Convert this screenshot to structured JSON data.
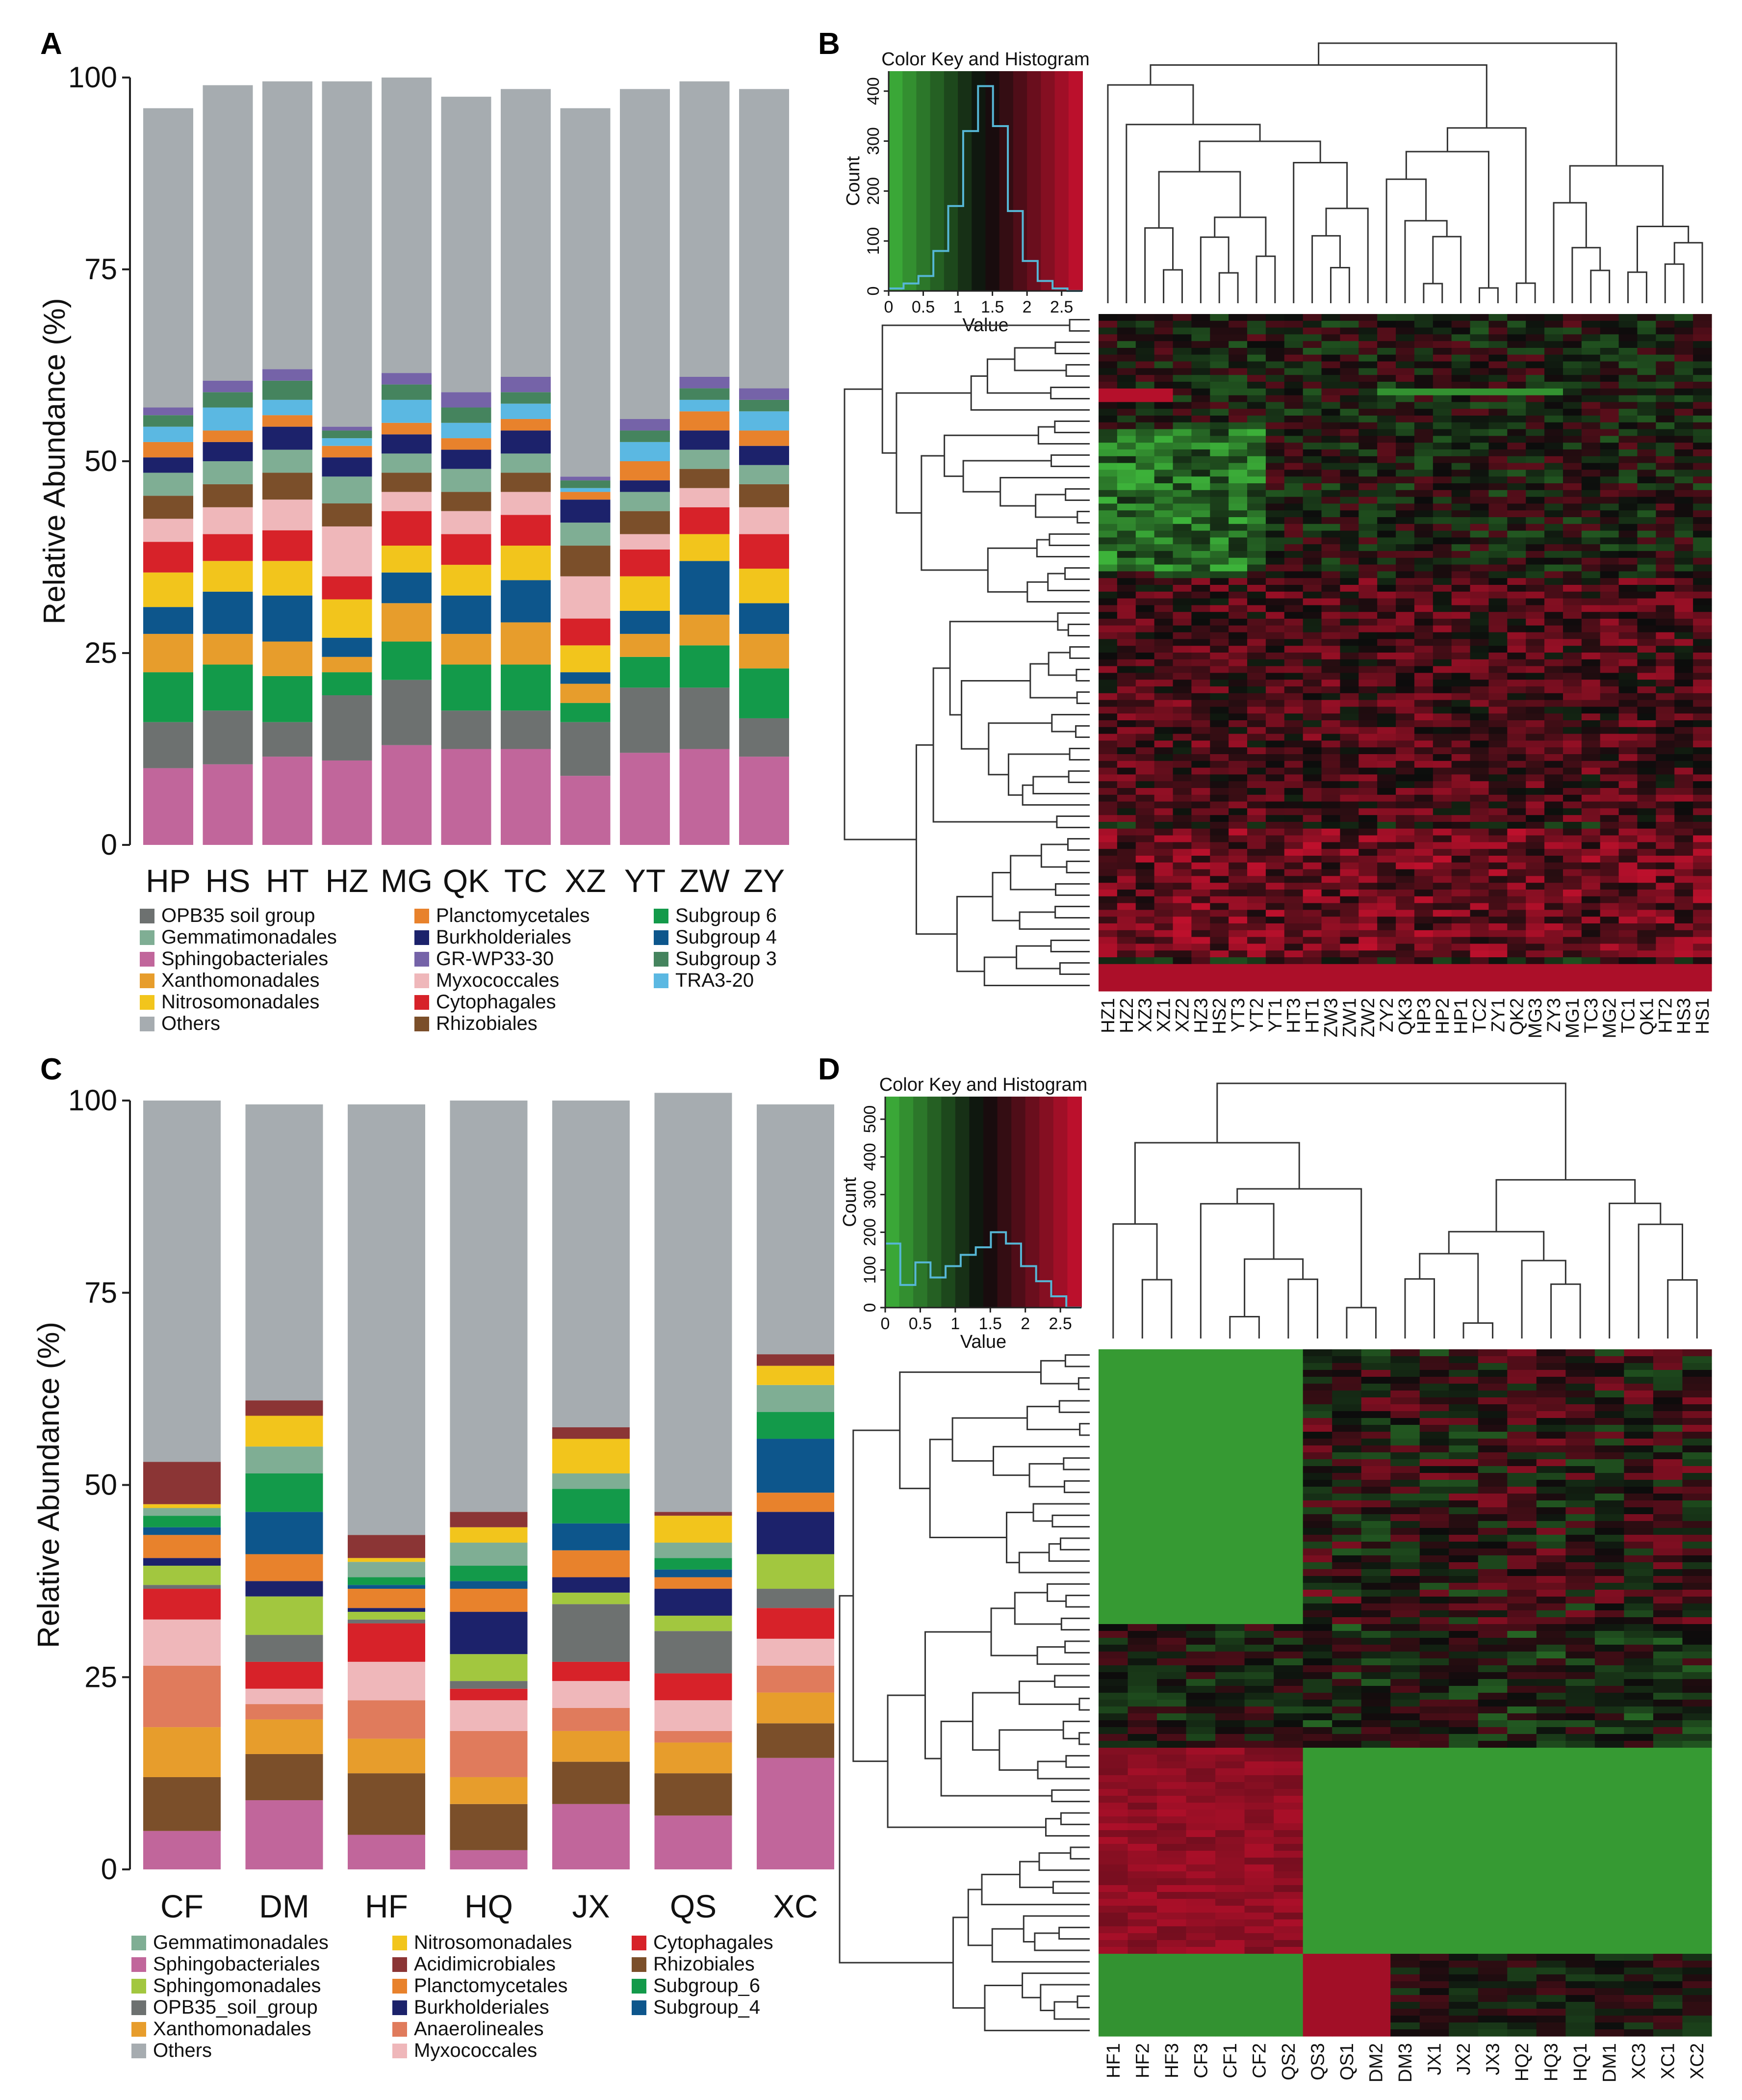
{
  "panels": {
    "A": "A",
    "B": "B",
    "C": "C",
    "D": "D"
  },
  "chart_data": [
    {
      "panel": "A",
      "type": "bar",
      "stacked": true,
      "title": "",
      "xlabel": "",
      "ylabel": "Relative Abundance (%)",
      "ylim": [
        0,
        100
      ],
      "yticks": [
        0,
        25,
        50,
        75,
        100
      ],
      "categories": [
        "HP",
        "HS",
        "HT",
        "HZ",
        "MG",
        "QK",
        "TC",
        "XZ",
        "YT",
        "ZW",
        "ZY"
      ],
      "series": [
        {
          "name": "Sphingobacteriales",
          "color": "#c1669b",
          "values": [
            10,
            10.5,
            11.5,
            11,
            13,
            12.5,
            12.5,
            9,
            12,
            12.5,
            11.5
          ]
        },
        {
          "name": "OPB35 soil group",
          "color": "#6d7170",
          "values": [
            6,
            7,
            4.5,
            8.5,
            8.5,
            5,
            5,
            7,
            8.5,
            8,
            5
          ]
        },
        {
          "name": "Subgroup 6",
          "color": "#139a4a",
          "values": [
            6.5,
            6,
            6,
            3,
            5,
            6,
            6,
            2.5,
            4,
            5.5,
            6.5
          ]
        },
        {
          "name": "Xanthomonadales",
          "color": "#e79d2c",
          "values": [
            5,
            4,
            4.5,
            2,
            5,
            4,
            5.5,
            2.5,
            3,
            4,
            4.5
          ]
        },
        {
          "name": "Subgroup 4",
          "color": "#0d568c",
          "values": [
            3.5,
            5.5,
            6,
            2.5,
            4,
            5,
            5.5,
            1.5,
            3,
            7,
            4
          ]
        },
        {
          "name": "Nitrosomonadales",
          "color": "#f2c51c",
          "values": [
            4.5,
            4,
            4.5,
            5,
            3.5,
            4,
            4.5,
            3.5,
            4.5,
            3.5,
            4.5
          ]
        },
        {
          "name": "Cytophagales",
          "color": "#d72229",
          "values": [
            4,
            3.5,
            4,
            3,
            4.5,
            4,
            4,
            3.5,
            3.5,
            3.5,
            4.5
          ]
        },
        {
          "name": "Myxococcales",
          "color": "#efb7ba",
          "values": [
            3,
            3.5,
            4,
            6.5,
            2.5,
            3,
            3,
            5.5,
            2,
            2.5,
            3.5
          ]
        },
        {
          "name": "Rhizobiales",
          "color": "#7b4f2a",
          "values": [
            3,
            3,
            3.5,
            3,
            2.5,
            2.5,
            2.5,
            4,
            3,
            2.5,
            3
          ]
        },
        {
          "name": "Gemmatimonadales",
          "color": "#7fae94",
          "values": [
            3,
            3,
            3,
            3.5,
            2.5,
            3,
            2.5,
            3,
            2.5,
            2.5,
            2.5
          ]
        },
        {
          "name": "Burkholderiales",
          "color": "#1c226b",
          "values": [
            2,
            2.5,
            3,
            2.5,
            2.5,
            2.5,
            3,
            3,
            1.5,
            2.5,
            2.5
          ]
        },
        {
          "name": "Planctomycetales",
          "color": "#e8822c",
          "values": [
            2,
            1.5,
            1.5,
            1.5,
            1.5,
            1.5,
            1.5,
            1,
            2.5,
            2.5,
            2
          ]
        },
        {
          "name": "TRA3-20",
          "color": "#5bb8e2",
          "values": [
            2,
            3,
            2,
            1,
            3,
            2,
            2,
            0.5,
            2.5,
            1.5,
            2.5
          ]
        },
        {
          "name": "Subgroup 3",
          "color": "#45845e",
          "values": [
            1.5,
            2,
            2.5,
            1,
            2,
            2,
            1.5,
            1,
            1.5,
            1.5,
            1.5
          ]
        },
        {
          "name": "GR-WP33-30",
          "color": "#7563a8",
          "values": [
            1,
            1.5,
            1.5,
            0.5,
            1.5,
            2,
            2,
            0.5,
            1.5,
            1.5,
            1.5
          ]
        },
        {
          "name": "Others",
          "color": "#a6acb0",
          "values": [
            39,
            38.5,
            37.5,
            45,
            38.5,
            38.5,
            37.5,
            48,
            43,
            38.5,
            39
          ]
        }
      ]
    },
    {
      "panel": "B",
      "type": "heatmap",
      "title": "Color Key and Histogram",
      "key": {
        "xlabel": "Value",
        "ylabel": "Count",
        "xticks": [
          "0",
          "0.5",
          "1",
          "1.5",
          "2",
          "2.5"
        ],
        "yticks": [
          "0",
          "100",
          "200",
          "300",
          "400"
        ],
        "range": [
          0,
          2.8
        ],
        "ymax": 440,
        "histogram": [
          5,
          15,
          30,
          80,
          170,
          320,
          410,
          330,
          160,
          60,
          20,
          5,
          0
        ]
      },
      "columns": [
        "HZ1",
        "HZ2",
        "XZ3",
        "XZ1",
        "XZ2",
        "HZ3",
        "HS2",
        "YT3",
        "YT2",
        "YT1",
        "HT3",
        "HT1",
        "ZW3",
        "ZW1",
        "ZW2",
        "ZY2",
        "QK3",
        "HP3",
        "HP2",
        "HP1",
        "TC2",
        "ZY1",
        "QK2",
        "MG3",
        "ZY3",
        "MG1",
        "TC3",
        "MG2",
        "TC1",
        "QK1",
        "HT2",
        "HS3",
        "HS1"
      ],
      "n_rows": 100
    },
    {
      "panel": "C",
      "type": "bar",
      "stacked": true,
      "title": "",
      "xlabel": "",
      "ylabel": "Relative Abundance (%)",
      "ylim": [
        0,
        100
      ],
      "yticks": [
        0,
        25,
        50,
        75,
        100
      ],
      "categories": [
        "CF",
        "DM",
        "HF",
        "HQ",
        "JX",
        "QS",
        "XC"
      ],
      "series": [
        {
          "name": "Sphingobacteriales",
          "color": "#c1669b",
          "values": [
            5,
            9,
            4.5,
            2.5,
            8.5,
            7,
            14.5
          ]
        },
        {
          "name": "Rhizobiales",
          "color": "#7b4f2a",
          "values": [
            7,
            6,
            8,
            6,
            5.5,
            5.5,
            4.5
          ]
        },
        {
          "name": "Xanthomonadales",
          "color": "#e79d2c",
          "values": [
            6.5,
            4.5,
            4.5,
            3.5,
            4,
            4,
            4
          ]
        },
        {
          "name": "Anaerolineales",
          "color": "#e07b5c",
          "values": [
            8,
            2,
            5,
            6,
            3,
            1.5,
            3.5
          ]
        },
        {
          "name": "Myxococcales",
          "color": "#efb7ba",
          "values": [
            6,
            2,
            5,
            4,
            3.5,
            4,
            3.5
          ]
        },
        {
          "name": "Cytophagales",
          "color": "#d72229",
          "values": [
            4,
            3.5,
            5,
            1.5,
            2.5,
            3.5,
            4
          ]
        },
        {
          "name": "OPB35_soil_group",
          "color": "#6d7170",
          "values": [
            0.5,
            3.5,
            0.5,
            1,
            7.5,
            5.5,
            2.5
          ]
        },
        {
          "name": "Sphingomonadales",
          "color": "#a2c73f",
          "values": [
            2.5,
            5,
            1,
            3.5,
            1.5,
            2,
            4.5
          ]
        },
        {
          "name": "Burkholderiales",
          "color": "#1c226b",
          "values": [
            1,
            2,
            0.5,
            5.5,
            2,
            3.5,
            5.5
          ]
        },
        {
          "name": "Planctomycetales",
          "color": "#e8822c",
          "values": [
            3,
            3.5,
            2.5,
            3,
            3.5,
            1.5,
            2.5
          ]
        },
        {
          "name": "Subgroup_4",
          "color": "#0d568c",
          "values": [
            1,
            5.5,
            0.5,
            1,
            3.5,
            1,
            7
          ]
        },
        {
          "name": "Subgroup_6",
          "color": "#139a4a",
          "values": [
            1.5,
            5,
            1,
            2,
            4.5,
            1.5,
            3.5
          ]
        },
        {
          "name": "Gemmatimonadales",
          "color": "#7fae94",
          "values": [
            1,
            3.5,
            2,
            3,
            2,
            2,
            3.5
          ]
        },
        {
          "name": "Nitrosomonadales",
          "color": "#f2c51c",
          "values": [
            0.5,
            4,
            0.5,
            2,
            4.5,
            3.5,
            2.5
          ]
        },
        {
          "name": "Acidimicrobiales",
          "color": "#8b3535",
          "values": [
            5.5,
            2,
            3,
            2,
            1.5,
            0.5,
            1.5
          ]
        },
        {
          "name": "Others",
          "color": "#a6acb0",
          "values": [
            47,
            38.5,
            56,
            53.5,
            42.5,
            54.5,
            32.5
          ]
        }
      ]
    },
    {
      "panel": "D",
      "type": "heatmap",
      "title": "Color Key and Histogram",
      "key": {
        "xlabel": "Value",
        "ylabel": "Count",
        "xticks": [
          "0",
          "0.5",
          "1",
          "1.5",
          "2",
          "2.5"
        ],
        "yticks": [
          "0",
          "100",
          "200",
          "300",
          "400",
          "500"
        ],
        "range": [
          0,
          2.8
        ],
        "ymax": 560,
        "histogram": [
          170,
          60,
          120,
          80,
          110,
          140,
          160,
          200,
          170,
          110,
          70,
          30,
          0
        ]
      },
      "columns": [
        "HF1",
        "HF2",
        "HF3",
        "CF3",
        "CF1",
        "CF2",
        "QS2",
        "QS3",
        "QS1",
        "DM2",
        "DM3",
        "JX1",
        "JX2",
        "JX3",
        "HQ2",
        "HQ3",
        "HQ1",
        "DM1",
        "XC3",
        "XC1",
        "XC2"
      ],
      "n_rows": 100
    }
  ],
  "legends": {
    "A": [
      "OPB35 soil group",
      "Gemmatimonadales",
      "Sphingobacteriales",
      "Xanthomonadales",
      "Nitrosomonadales",
      "Others",
      "Planctomycetales",
      "Burkholderiales",
      "GR-WP33-30",
      "Myxococcales",
      "Cytophagales",
      "Rhizobiales",
      "Subgroup 6",
      "Subgroup 4",
      "Subgroup 3",
      "TRA3-20"
    ],
    "C": [
      "Gemmatimonadales",
      "Sphingobacteriales",
      "Sphingomonadales",
      "OPB35_soil_group",
      "Xanthomonadales",
      "Others",
      "Nitrosomonadales",
      "Acidimicrobiales",
      "Planctomycetales",
      "Burkholderiales",
      "Anaerolineales",
      "Myxococcales",
      "Cytophagales",
      "Rhizobiales",
      "Subgroup_6",
      "Subgroup_4"
    ]
  },
  "colors": {
    "others_gray": "#a6acb0",
    "heat_low": "#3db33a",
    "heat_mid": "#0b0b0b",
    "heat_high": "#c8102e",
    "key_line": "#56b7d6"
  }
}
